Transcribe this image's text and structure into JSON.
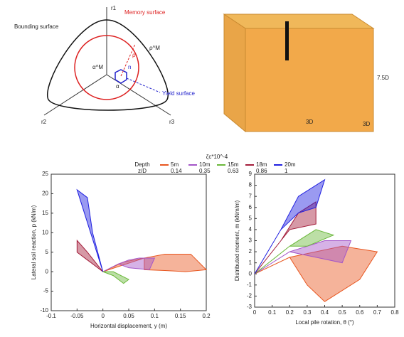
{
  "diagram": {
    "axis_1": "r1",
    "axis_2": "r2",
    "axis_3": "r3",
    "bounding_surface": "Bounding surface",
    "memory_surface": "Memory surface",
    "yield_surface": "Yield surface",
    "alpha_m": "α^M",
    "alpha": "α",
    "rho_m": "ρ^M",
    "rho": "ρ",
    "n": "n"
  },
  "model": {
    "width_label": "3D",
    "depth_label": "3D",
    "height_label": "7.5D"
  },
  "chart_data": [
    {
      "type": "line",
      "xlabel": "Horizontal displacement, y (m)",
      "ylabel": "Lateral soil reaction, p (kN/m)",
      "legend_title": "Depth",
      "legend_subtitle": "z/D",
      "legend_note": "ζc*10^-4",
      "xlim": [
        -0.1,
        0.2
      ],
      "xticks": [
        -0.1,
        -0.05,
        0,
        0.05,
        0.1,
        0.15,
        0.2
      ],
      "ylim": [
        -10,
        25
      ],
      "yticks": [
        -10,
        -5,
        0,
        5,
        10,
        15,
        20,
        25
      ],
      "series": [
        {
          "name": "5m",
          "depth_ratio": 0.14,
          "color": "#e8561f",
          "x": [
            0,
            0.04,
            0.08,
            0.12,
            0.17,
            0.2,
            0.16,
            0.12,
            0.08,
            0.08
          ],
          "values": [
            0,
            2.5,
            3.5,
            4.5,
            4.5,
            0.5,
            0,
            0.3,
            0.5,
            3.5
          ]
        },
        {
          "name": "10m",
          "depth_ratio": 0.35,
          "color": "#a355c8",
          "x": [
            0,
            0.03,
            0.05,
            0.07,
            0.1,
            0.09,
            0.05,
            0.03
          ],
          "values": [
            0,
            2,
            3,
            3.5,
            3.5,
            0.5,
            1,
            2
          ]
        },
        {
          "name": "15m",
          "depth_ratio": 0.63,
          "color": "#6ab83a",
          "x": [
            0,
            0.02,
            0.04,
            0.05,
            0.02,
            0
          ],
          "values": [
            0,
            -1,
            -3,
            -2,
            0,
            0
          ]
        },
        {
          "name": "18m",
          "depth_ratio": 0.86,
          "color": "#a31c3a",
          "x": [
            0,
            -0.03,
            -0.05,
            -0.05,
            -0.03,
            0
          ],
          "values": [
            0,
            5,
            8,
            5,
            3,
            0
          ]
        },
        {
          "name": "20m",
          "depth_ratio": 1,
          "color": "#1f1fe0",
          "x": [
            0,
            -0.05,
            -0.03,
            -0.02,
            -0.01,
            0
          ],
          "values": [
            0,
            21,
            19,
            10,
            5,
            0
          ]
        }
      ]
    },
    {
      "type": "line",
      "xlabel": "Local pile rotation, θ (°)",
      "ylabel": "Distributed moment, m (kNm/m)",
      "xlim": [
        0,
        0.8
      ],
      "xticks": [
        0,
        0.1,
        0.2,
        0.3,
        0.4,
        0.5,
        0.6,
        0.7,
        0.8
      ],
      "ylim": [
        -3,
        9
      ],
      "yticks": [
        -3,
        -2,
        -1,
        0,
        1,
        2,
        3,
        4,
        5,
        6,
        7,
        8,
        9
      ],
      "series": [
        {
          "color": "#e8561f",
          "x": [
            0,
            0.2,
            0.5,
            0.7,
            0.6,
            0.4,
            0.3,
            0.2
          ],
          "values": [
            0,
            1.5,
            2.5,
            2,
            -0.5,
            -2.5,
            -1,
            1.5
          ]
        },
        {
          "color": "#a355c8",
          "x": [
            0,
            0.2,
            0.4,
            0.55,
            0.5,
            0.35,
            0.2
          ],
          "values": [
            0,
            2,
            3,
            3,
            1,
            1.5,
            2
          ]
        },
        {
          "color": "#6ab83a",
          "x": [
            0,
            0.2,
            0.35,
            0.45,
            0.3,
            0.2
          ],
          "values": [
            0,
            2.5,
            4,
            3.5,
            2.5,
            2.5
          ]
        },
        {
          "color": "#a31c3a",
          "x": [
            0,
            0.15,
            0.25,
            0.35,
            0.35,
            0.2,
            0.15
          ],
          "values": [
            0,
            3,
            5.5,
            6.5,
            4.5,
            4,
            3
          ]
        },
        {
          "color": "#1f1fe0",
          "x": [
            0,
            0.15,
            0.25,
            0.4,
            0.35,
            0.25,
            0.15
          ],
          "values": [
            0,
            4,
            7,
            8.5,
            6,
            5.5,
            4
          ]
        }
      ]
    }
  ]
}
